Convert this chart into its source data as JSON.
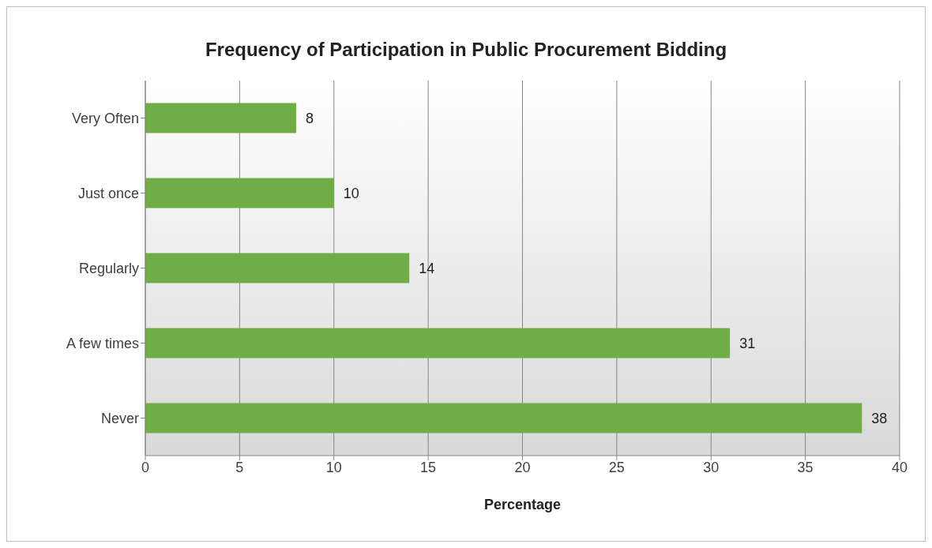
{
  "chart_data": {
    "type": "bar",
    "orientation": "horizontal",
    "title": "Frequency of Participation in Public Procurement Bidding",
    "xlabel": "Percentage",
    "categories": [
      "Very Often",
      "Just once",
      "Regularly",
      "A few times",
      "Never"
    ],
    "values": [
      8,
      10,
      14,
      31,
      38
    ],
    "color": "#70ad47",
    "xlim": [
      0,
      40
    ],
    "xticks": [
      0,
      5,
      10,
      15,
      20,
      25,
      30,
      35,
      40
    ],
    "grid": "x",
    "data_labels": true
  }
}
